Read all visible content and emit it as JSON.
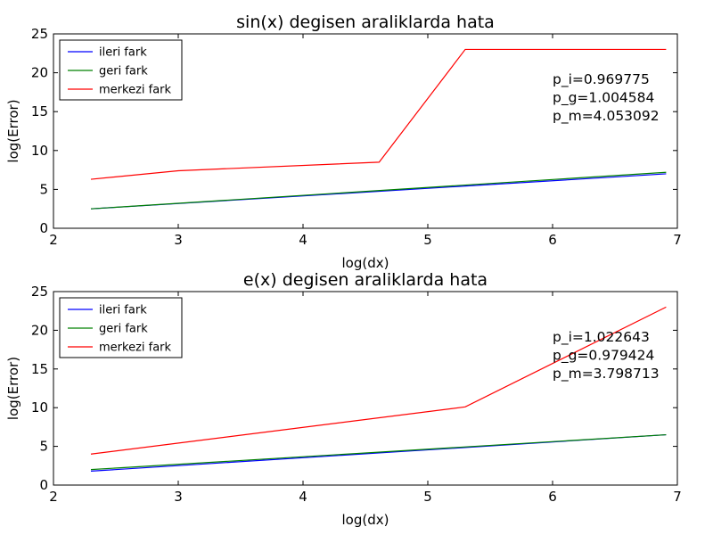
{
  "chart_data": [
    {
      "type": "line",
      "title": "sin(x) degisen araliklarda hata",
      "xlabel": "log(dx)",
      "ylabel": "log(Error)",
      "xlim": [
        2,
        7
      ],
      "ylim": [
        0,
        25
      ],
      "xticks": [
        2,
        3,
        4,
        5,
        6,
        7
      ],
      "yticks": [
        0,
        5,
        10,
        15,
        20,
        25
      ],
      "grid": false,
      "legend_position": "top-left",
      "series": [
        {
          "name": "ileri fark",
          "color": "#0000ff",
          "x": [
            2.3,
            6.91
          ],
          "y": [
            2.5,
            7.0
          ]
        },
        {
          "name": "geri fark",
          "color": "#008000",
          "x": [
            2.3,
            6.91
          ],
          "y": [
            2.5,
            7.2
          ]
        },
        {
          "name": "merkezi fark",
          "color": "#ff0000",
          "x": [
            2.3,
            3.0,
            4.61,
            5.3,
            6.91
          ],
          "y": [
            6.3,
            7.4,
            8.5,
            23.0,
            23.0
          ]
        }
      ],
      "annotations": [
        "p_i=0.969775",
        "p_g=1.004584",
        "p_m=4.053092"
      ]
    },
    {
      "type": "line",
      "title": "e(x) degisen araliklarda hata",
      "xlabel": "log(dx)",
      "ylabel": "log(Error)",
      "xlim": [
        2,
        7
      ],
      "ylim": [
        0,
        25
      ],
      "xticks": [
        2,
        3,
        4,
        5,
        6,
        7
      ],
      "yticks": [
        0,
        5,
        10,
        15,
        20,
        25
      ],
      "grid": false,
      "legend_position": "top-left",
      "series": [
        {
          "name": "ileri fark",
          "color": "#0000ff",
          "x": [
            2.3,
            6.91
          ],
          "y": [
            1.8,
            6.5
          ]
        },
        {
          "name": "geri fark",
          "color": "#008000",
          "x": [
            2.3,
            6.91
          ],
          "y": [
            2.0,
            6.5
          ]
        },
        {
          "name": "merkezi fark",
          "color": "#ff0000",
          "x": [
            2.3,
            5.3,
            6.91
          ],
          "y": [
            4.0,
            10.1,
            23.0
          ]
        }
      ],
      "annotations": [
        "p_i=1.022643",
        "p_g=0.979424",
        "p_m=3.798713"
      ]
    }
  ]
}
